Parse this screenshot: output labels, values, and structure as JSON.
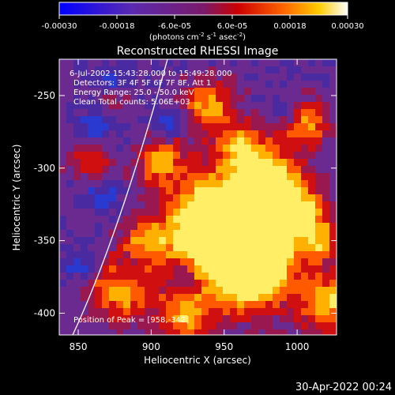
{
  "colorbar": {
    "ticks": [
      {
        "value": -0.0003,
        "label": "-0.00030"
      },
      {
        "value": -0.00018,
        "label": "-0.00018"
      },
      {
        "value": -6e-05,
        "label": "-6.0e-05"
      },
      {
        "value": 6e-05,
        "label": "6.0e-05"
      },
      {
        "value": 0.00018,
        "label": "0.00018"
      },
      {
        "value": 0.0003,
        "label": "0.00030"
      }
    ],
    "range": [
      -0.0003,
      0.0003
    ],
    "unit_main": "(photons cm",
    "unit_exp1": "-2",
    "unit_s": " s",
    "unit_exp2": "-1",
    "unit_asec": " asec",
    "unit_exp3": "-2",
    "unit_close": ")"
  },
  "image": {
    "title": "Reconstructed RHESSI Image",
    "info_lines": [
      "6-Jul-2002 15:43:28.000 to 15:49:28.000",
      "Detectors: 3F 4F 5F 6F 7F 8F, Att 1",
      "Energy Range: 25.0 - 50.0 keV",
      "Clean    Total counts: 5.06E+03"
    ],
    "peak_text": "Position of Peak = [958,-342]",
    "xlabel": "Heliocentric X (arcsec)",
    "ylabel": "Heliocentric Y (arcsec)",
    "xlim": [
      837,
      1027
    ],
    "ylim": [
      -415,
      -225
    ],
    "xticks": [
      850,
      900,
      950,
      1000
    ],
    "yticks": [
      -250,
      -300,
      -350,
      -400
    ]
  },
  "timestamp": "30-Apr-2022 00:24"
}
